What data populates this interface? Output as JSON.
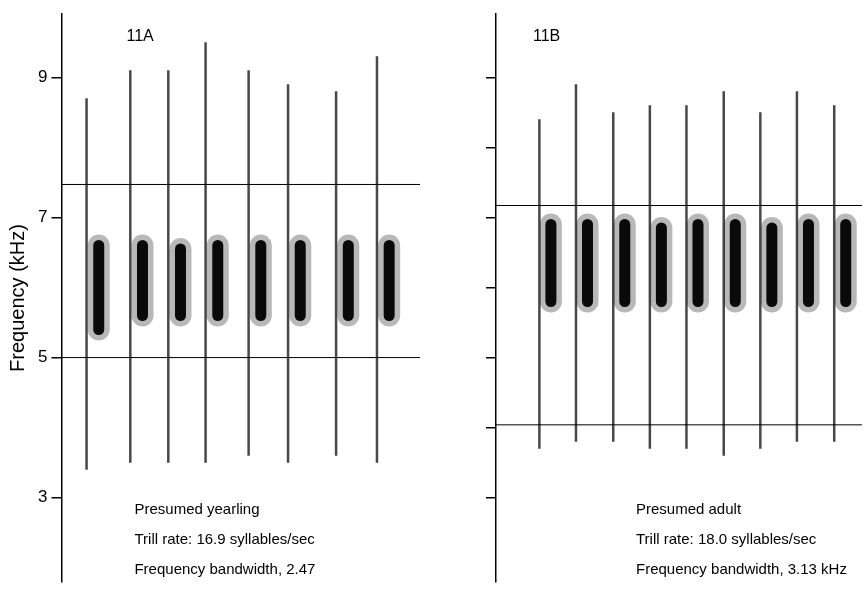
{
  "chart_data": [
    {
      "type": "spectrogram",
      "title": "11A",
      "y_label": "Frequency (kHz)",
      "ylim": [
        1.8,
        9.9
      ],
      "yticks": [
        3,
        5,
        7,
        9
      ],
      "xlim": [
        0,
        500
      ],
      "tick_labels": "y",
      "grid": false,
      "syllables": {
        "x": [
          35,
          96,
          149,
          201,
          261,
          316,
          383,
          440
        ],
        "sweep_high": [
          8.7,
          9.1,
          9.1,
          9.5,
          9.1,
          8.9,
          8.8,
          9.3
        ],
        "sweep_low": [
          3.4,
          3.5,
          3.5,
          3.5,
          3.6,
          3.5,
          3.6,
          3.5
        ],
        "note_x": [
          52,
          113,
          166,
          218,
          278,
          333,
          400,
          457
        ],
        "note_high": [
          6.6,
          6.6,
          6.55,
          6.6,
          6.6,
          6.6,
          6.6,
          6.6
        ],
        "note_low": [
          5.4,
          5.6,
          5.6,
          5.6,
          5.6,
          5.6,
          5.6,
          5.6
        ]
      },
      "bandwidth_lines": [
        7.47,
        5.0
      ],
      "annotations": [
        "Presumed yearling",
        "Trill rate: 16.9 syllables/sec",
        "Frequency bandwidth, 2.47"
      ]
    },
    {
      "type": "spectrogram",
      "title": "11B",
      "ylim": [
        1.8,
        9.9
      ],
      "yticks": [
        3,
        4,
        5,
        6,
        7,
        8,
        9
      ],
      "xlim": [
        0,
        540
      ],
      "tick_labels": false,
      "grid": false,
      "syllables": {
        "x": [
          64,
          118,
          173,
          227,
          281,
          336,
          390,
          444,
          499
        ],
        "sweep_high": [
          8.4,
          8.9,
          8.5,
          8.6,
          8.6,
          8.8,
          8.5,
          8.8,
          8.6
        ],
        "sweep_low": [
          3.7,
          3.8,
          3.8,
          3.7,
          3.7,
          3.6,
          3.7,
          3.8,
          3.8
        ],
        "note_x": [
          81,
          135,
          190,
          244,
          298,
          353,
          407,
          461,
          516
        ],
        "note_high": [
          6.9,
          6.9,
          6.9,
          6.85,
          6.9,
          6.9,
          6.85,
          6.9,
          6.9
        ],
        "note_low": [
          5.8,
          5.8,
          5.8,
          5.8,
          5.8,
          5.8,
          5.8,
          5.8,
          5.8
        ]
      },
      "bandwidth_lines": [
        7.17,
        4.04
      ],
      "annotations": [
        "Presumed adult",
        "Trill rate: 18.0 syllables/sec",
        "Frequency bandwidth, 3.13 kHz"
      ]
    }
  ]
}
